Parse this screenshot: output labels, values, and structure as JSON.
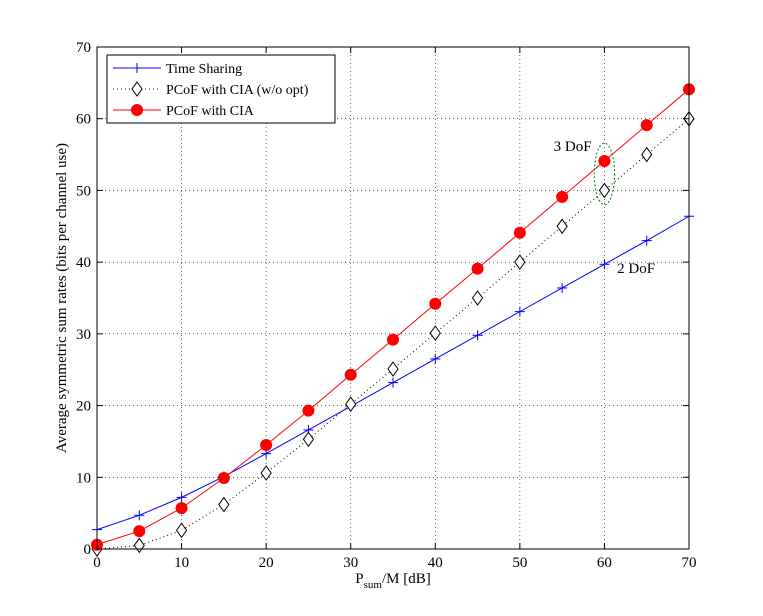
{
  "chart_data": {
    "type": "line",
    "xlabel": "P",
    "xlabel_sub": "sum",
    "xlabel_rest": "/M [dB]",
    "ylabel": "Average symmetric sum rates (bits per channel use)",
    "xlim": [
      0,
      70
    ],
    "ylim": [
      0,
      70
    ],
    "xticks": [
      0,
      10,
      20,
      30,
      40,
      50,
      60,
      70
    ],
    "yticks": [
      0,
      10,
      20,
      30,
      40,
      50,
      60,
      70
    ],
    "grid": true,
    "legend_position": "top-left",
    "series": [
      {
        "name": "Time Sharing",
        "color": "#0000ff",
        "marker": "plus",
        "line": "solid",
        "x": [
          0,
          5,
          10,
          15,
          20,
          25,
          30,
          35,
          40,
          45,
          50,
          55,
          60,
          65,
          70
        ],
        "values": [
          2.7,
          4.7,
          7.2,
          10.1,
          13.3,
          16.6,
          19.9,
          23.2,
          26.5,
          29.8,
          33.1,
          36.4,
          39.7,
          43.0,
          46.4
        ]
      },
      {
        "name": "PCoF with CIA (w/o opt)",
        "color": "#000000",
        "marker": "diamond",
        "line": "dotted",
        "x": [
          0,
          5,
          10,
          15,
          20,
          25,
          30,
          35,
          40,
          45,
          50,
          55,
          60,
          65,
          70
        ],
        "values": [
          0.0,
          0.5,
          2.6,
          6.2,
          10.6,
          15.3,
          20.2,
          25.1,
          30.1,
          35.0,
          40.0,
          45.0,
          50.0,
          55.0,
          60.0
        ]
      },
      {
        "name": "PCoF with CIA",
        "color": "#ff0000",
        "marker": "circle",
        "line": "solid",
        "x": [
          0,
          5,
          10,
          15,
          20,
          25,
          30,
          35,
          40,
          45,
          50,
          55,
          60,
          65,
          70
        ],
        "values": [
          0.6,
          2.5,
          5.7,
          9.9,
          14.5,
          19.3,
          24.3,
          29.2,
          34.2,
          39.1,
          44.1,
          49.1,
          54.1,
          59.1,
          64.1
        ]
      }
    ],
    "annotations": [
      {
        "text": "3 DoF",
        "x": 54,
        "y": 55.5
      },
      {
        "text": "2 DoF",
        "x": 61.5,
        "y": 38.5
      }
    ],
    "highlight_ellipse": {
      "cx": 60,
      "cy": 52.3,
      "rx": 1.2,
      "ry": 4.3,
      "color": "#008000"
    }
  }
}
